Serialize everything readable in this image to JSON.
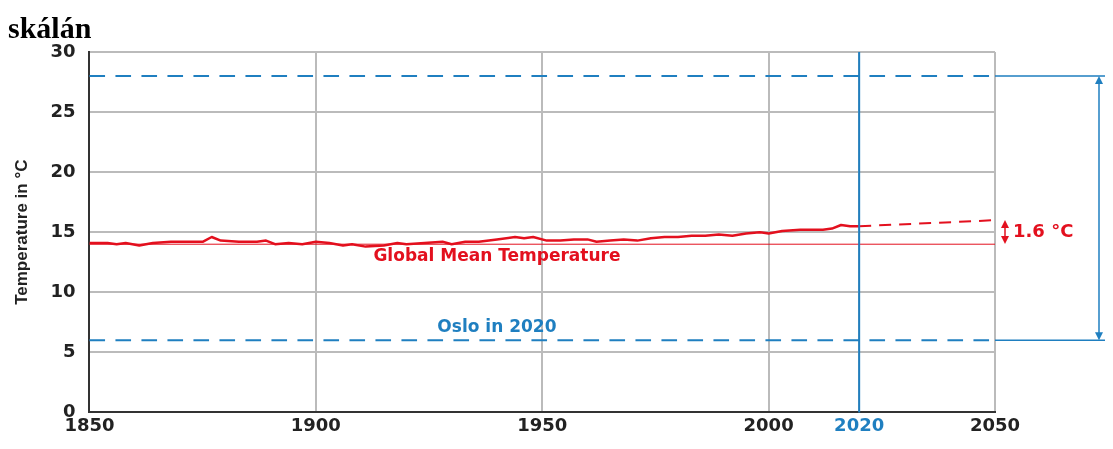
{
  "chart_data": {
    "type": "line",
    "title": "skálán",
    "ylabel": "Temperature in °C",
    "xlim": [
      1850,
      2050
    ],
    "xticks": [
      1850,
      1900,
      1950,
      2000,
      2020,
      2050
    ],
    "ylim": [
      0,
      30
    ],
    "yticks": [
      0,
      5,
      10,
      15,
      20,
      25,
      30
    ],
    "grid": true,
    "marker": "none",
    "series": [
      {
        "color": "#e3101e",
        "line_style": "solid",
        "x": [
          1850,
          1854,
          1856,
          1858,
          1861,
          1864,
          1868,
          1872,
          1875,
          1877,
          1879,
          1883,
          1887,
          1889,
          1891,
          1894,
          1897,
          1900,
          1903,
          1906,
          1908,
          1911,
          1915,
          1918,
          1920,
          1924,
          1928,
          1930,
          1933,
          1936,
          1940,
          1944,
          1946,
          1948,
          1951,
          1954,
          1957,
          1960,
          1962,
          1965,
          1968,
          1971,
          1974,
          1977,
          1980,
          1983,
          1986,
          1989,
          1992,
          1995,
          1998,
          2000,
          2003,
          2007,
          2010,
          2012,
          2014,
          2016,
          2018,
          2020
        ],
        "values": [
          14.1,
          14.1,
          14.0,
          14.1,
          13.9,
          14.1,
          14.2,
          14.2,
          14.2,
          14.6,
          14.3,
          14.2,
          14.2,
          14.3,
          14.0,
          14.1,
          14.0,
          14.2,
          14.1,
          13.9,
          14.0,
          13.8,
          13.9,
          14.1,
          14.0,
          14.1,
          14.2,
          14.0,
          14.2,
          14.2,
          14.4,
          14.6,
          14.5,
          14.6,
          14.3,
          14.3,
          14.4,
          14.4,
          14.2,
          14.3,
          14.4,
          14.3,
          14.5,
          14.6,
          14.6,
          14.7,
          14.7,
          14.8,
          14.7,
          14.9,
          15.0,
          14.9,
          15.1,
          15.2,
          15.2,
          15.2,
          15.3,
          15.6,
          15.5,
          15.5
        ]
      },
      {
        "color": "#e3101e",
        "line_style": "dashed",
        "x": [
          2020,
          2050
        ],
        "values": [
          15.5,
          16.0
        ]
      }
    ],
    "ref_lines": [
      {
        "axis": "y",
        "value": 28,
        "label": null,
        "color": "#1f7fc0",
        "line_style": "dashed"
      },
      {
        "axis": "y",
        "value": 6,
        "label": "Oslo in 2020",
        "color": "#1f7fc0",
        "line_style": "dashed"
      },
      {
        "axis": "y",
        "value": 14,
        "label": "Global Mean Temperature",
        "color": "#e3101e",
        "line_style": "solid"
      },
      {
        "axis": "x",
        "value": 2020,
        "label": null,
        "color": "#1f7fc0",
        "line_style": "solid"
      }
    ],
    "annotations": [
      "1.6 °C"
    ]
  }
}
